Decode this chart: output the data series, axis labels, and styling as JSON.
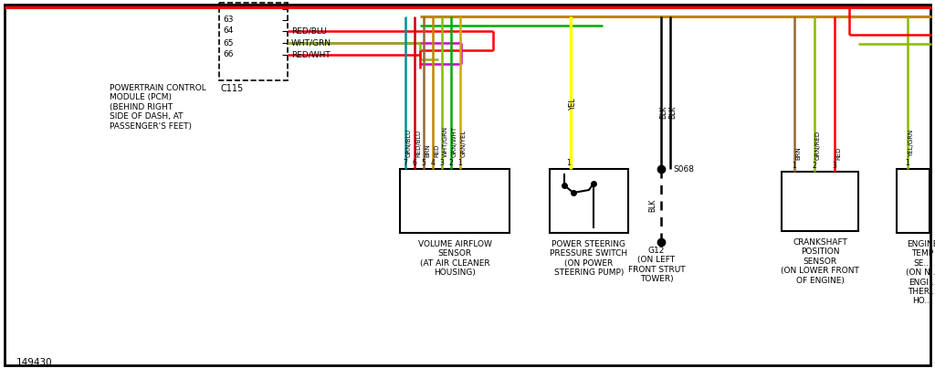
{
  "bg": "#ffffff",
  "fw": 10.24,
  "fh": 4.15,
  "c": {
    "red": "#ff0000",
    "green": "#00aa00",
    "lgreen": "#88bb00",
    "yellow": "#ffff00",
    "dyellow": "#ccaa00",
    "black": "#000000",
    "teal": "#009090",
    "purple": "#cc00cc",
    "brown": "#996633",
    "dgold": "#bb8800",
    "dred": "#cc0000"
  },
  "pcm_text": "POWERTRAIN CONTROL\nMODULE (PCM)\n(BEHIND RIGHT\nSIDE OF DASH, AT\nPASSENGER'S FEET)",
  "vaf_text": "VOLUME AIRFLOW\nSENSOR\n(AT AIR CLEANER\nHOUSING)",
  "psps_text": "POWER STEERING\nPRESSURE SWITCH\n(ON POWER\nSTEERING PUMP)",
  "g12_text": "G12\n(ON LEFT\nFRONT STRUT\nTOWER)",
  "cps_text": "CRANKSHAFT\nPOSITION\nSENSOR\n(ON LOWER FRONT\nOF ENGINE)",
  "ets_text": "ENGINE\nTEMP\nSE...\n(ON N...\nENGI...\nTHER...\nHO...",
  "part_num": "149430",
  "s068": "S068"
}
